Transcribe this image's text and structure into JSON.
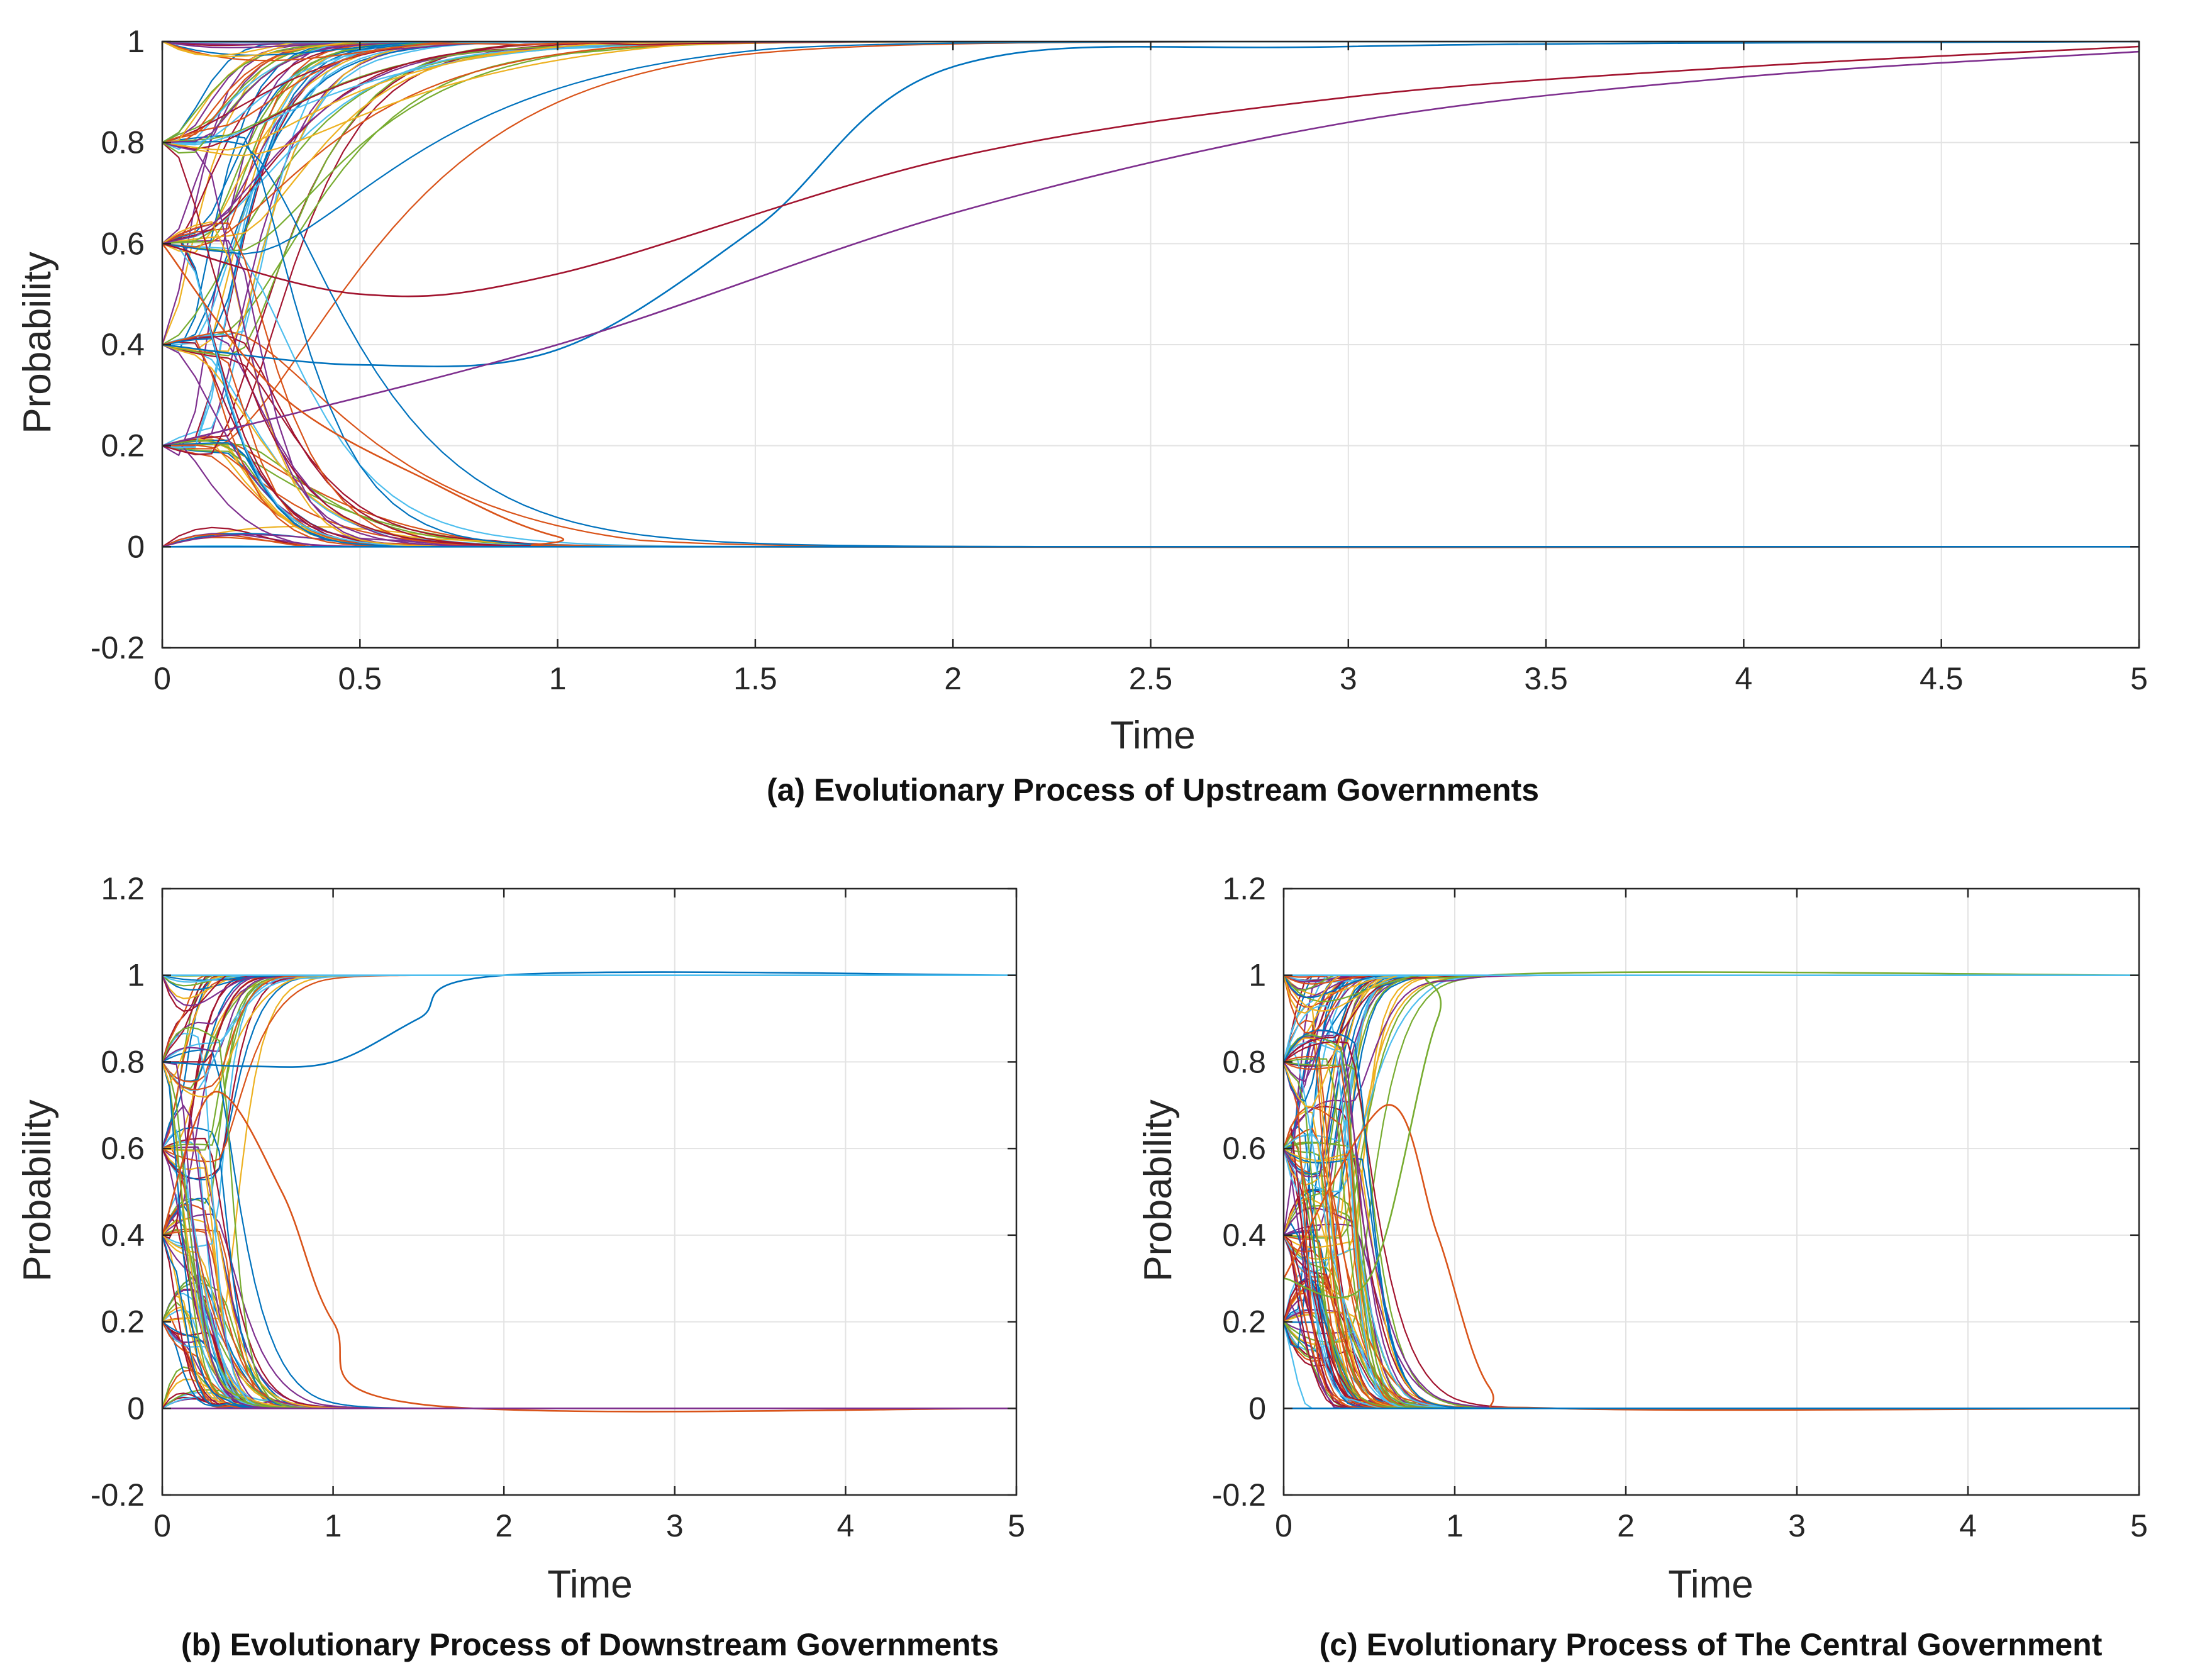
{
  "figure": {
    "colors": [
      "#0072BD",
      "#D95319",
      "#EDB120",
      "#7E2F8E",
      "#77AC30",
      "#4DBEEE",
      "#A2142F"
    ]
  },
  "chart_data": [
    {
      "id": "a",
      "type": "line",
      "caption": "(a) Evolutionary Process of Upstream Governments",
      "xlabel": "Time",
      "ylabel": "Probability",
      "xlim": [
        0,
        5
      ],
      "ylim": [
        -0.2,
        1
      ],
      "xticks": [
        0,
        0.5,
        1,
        1.5,
        2,
        2.5,
        3,
        3.5,
        4,
        4.5,
        5
      ],
      "xtick_labels": [
        "0",
        "0.5",
        "1",
        "1.5",
        "2",
        "2.5",
        "3",
        "3.5",
        "4",
        "4.5",
        "5"
      ],
      "yticks": [
        -0.2,
        0,
        0.2,
        0.4,
        0.6,
        0.8,
        1
      ],
      "ytick_labels": [
        "-0.2",
        "0",
        "0.2",
        "0.4",
        "0.6",
        "0.8",
        "1"
      ],
      "grid": true,
      "initial_values": [
        0,
        0.2,
        0.4,
        0.6,
        0.8,
        1
      ],
      "converges_to": [
        0,
        1
      ],
      "series_note": "Families of trajectories from initial probabilities 0, 0.2, 0.4, 0.6, 0.8, 1 converging to 0 or 1; slow convergers approach 1 by t=5.",
      "highlighted_series": [
        {
          "name": "blue (dip near 0.36)",
          "points": [
            [
              0,
              0.4
            ],
            [
              0.5,
              0.36
            ],
            [
              1,
              0.39
            ],
            [
              1.5,
              0.63
            ],
            [
              2,
              0.95
            ],
            [
              3,
              0.99
            ],
            [
              5,
              1.0
            ]
          ]
        },
        {
          "name": "purple (slowest)",
          "points": [
            [
              0,
              0.2
            ],
            [
              1,
              0.4
            ],
            [
              2,
              0.66
            ],
            [
              3,
              0.84
            ],
            [
              4,
              0.93
            ],
            [
              5,
              0.98
            ]
          ]
        },
        {
          "name": "red (0.5 plateau)",
          "points": [
            [
              0,
              0.6
            ],
            [
              0.5,
              0.5
            ],
            [
              1,
              0.54
            ],
            [
              2,
              0.77
            ],
            [
              3,
              0.89
            ],
            [
              4,
              0.95
            ],
            [
              5,
              0.99
            ]
          ]
        },
        {
          "name": "orange (descends to 0)",
          "points": [
            [
              0,
              0.6
            ],
            [
              0.3,
              0.3
            ],
            [
              0.7,
              0.12
            ],
            [
              1,
              0.02
            ],
            [
              1.3,
              0.0
            ],
            [
              5,
              0.0
            ]
          ]
        }
      ]
    },
    {
      "id": "b",
      "type": "line",
      "caption": "(b) Evolutionary Process of Downstream Governments",
      "xlabel": "Time",
      "ylabel": "Probability",
      "xlim": [
        0,
        5
      ],
      "ylim": [
        -0.2,
        1.2
      ],
      "xticks": [
        0,
        1,
        2,
        3,
        4,
        5
      ],
      "xtick_labels": [
        "0",
        "1",
        "2",
        "3",
        "4",
        "5"
      ],
      "yticks": [
        -0.2,
        0,
        0.2,
        0.4,
        0.6,
        0.8,
        1,
        1.2
      ],
      "ytick_labels": [
        "-0.2",
        "0",
        "0.2",
        "0.4",
        "0.6",
        "0.8",
        "1",
        "1.2"
      ],
      "grid": true,
      "initial_values": [
        0,
        0.2,
        0.4,
        0.6,
        0.8,
        1
      ],
      "converges_to": [
        0,
        1
      ],
      "series_note": "Trajectories split: upper group rises to 1 before t≈2, lower group peaks (up to ~0.73) then decays to 0 by t≈1.8.",
      "highlighted_series": [
        {
          "name": "blue (plateau 0.8)",
          "points": [
            [
              0,
              0.8
            ],
            [
              0.5,
              0.79
            ],
            [
              1,
              0.8
            ],
            [
              1.5,
              0.9
            ],
            [
              2,
              1.0
            ],
            [
              5,
              1.0
            ]
          ]
        },
        {
          "name": "orange (peak 0.73)",
          "points": [
            [
              0,
              0.4
            ],
            [
              0.3,
              0.73
            ],
            [
              0.7,
              0.5
            ],
            [
              1,
              0.2
            ],
            [
              1.5,
              0.01
            ],
            [
              5,
              0.0
            ]
          ]
        }
      ]
    },
    {
      "id": "c",
      "type": "line",
      "caption": "(c) Evolutionary Process of The Central Government",
      "xlabel": "Time",
      "ylabel": "Probability",
      "xlim": [
        0,
        5
      ],
      "ylim": [
        -0.2,
        1.2
      ],
      "xticks": [
        0,
        1,
        2,
        3,
        4,
        5
      ],
      "xtick_labels": [
        "0",
        "1",
        "2",
        "3",
        "4",
        "5"
      ],
      "yticks": [
        -0.2,
        0,
        0.2,
        0.4,
        0.6,
        0.8,
        1,
        1.2
      ],
      "ytick_labels": [
        "-0.2",
        "0",
        "0.2",
        "0.4",
        "0.6",
        "0.8",
        "1",
        "1.2"
      ],
      "grid": true,
      "initial_values": [
        0.2,
        0.4,
        0.6,
        0.8,
        1
      ],
      "converges_to": [
        0,
        1
      ],
      "series_note": "Dense bundle of trajectories; most converge to 0 or 1 before t≈1.8.",
      "highlighted_series": [
        {
          "name": "orange (peak 0.7)",
          "points": [
            [
              0,
              0.3
            ],
            [
              0.6,
              0.7
            ],
            [
              0.9,
              0.4
            ],
            [
              1.2,
              0.05
            ],
            [
              1.6,
              0.0
            ],
            [
              5,
              0.0
            ]
          ]
        },
        {
          "name": "green (late rise)",
          "points": [
            [
              0,
              0.3
            ],
            [
              0.5,
              0.3
            ],
            [
              0.9,
              0.9
            ],
            [
              1.2,
              1.0
            ],
            [
              5,
              1.0
            ]
          ]
        }
      ]
    }
  ]
}
